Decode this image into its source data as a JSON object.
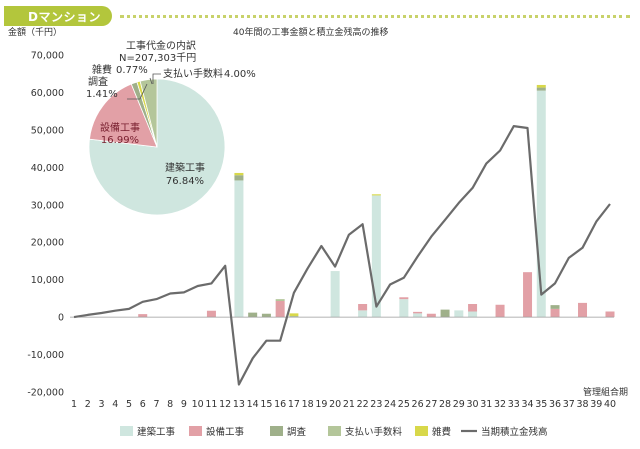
{
  "section_title": "Dマンション",
  "chart_data": {
    "type": "bar",
    "title": "40年間の工事金額と積立金残高の推移",
    "ylabel": "金額（千円）",
    "xlabel": "管理組合期",
    "ylim": [
      -20000,
      70000
    ],
    "yticks": [
      70000,
      60000,
      50000,
      40000,
      30000,
      20000,
      10000,
      0,
      -10000,
      -20000
    ],
    "ytick_labels": [
      "70,000",
      "60,000",
      "50,000",
      "40,000",
      "30,000",
      "20,000",
      "10,000",
      "0",
      "-10,000",
      "-20,000"
    ],
    "categories": [
      "1",
      "2",
      "3",
      "4",
      "5",
      "6",
      "7",
      "8",
      "9",
      "10",
      "11",
      "12",
      "13",
      "14",
      "15",
      "16",
      "17",
      "18",
      "19",
      "20",
      "21",
      "22",
      "23",
      "24",
      "25",
      "26",
      "27",
      "28",
      "29",
      "30",
      "31",
      "32",
      "33",
      "34",
      "35",
      "36",
      "37",
      "38",
      "39",
      "40"
    ],
    "series": [
      {
        "name": "建築工事",
        "color": "#cfe6df",
        "values": [
          0,
          0,
          0,
          0,
          0,
          0,
          0,
          0,
          0,
          0,
          0,
          0,
          36500,
          0,
          0,
          0,
          0,
          0,
          0,
          12300,
          0,
          1800,
          32500,
          0,
          4800,
          1000,
          0,
          0,
          1800,
          1500,
          0,
          0,
          0,
          0,
          60500,
          0,
          0,
          0,
          0,
          0
        ]
      },
      {
        "name": "設備工事",
        "color": "#e2a0a6",
        "values": [
          0,
          0,
          0,
          0,
          0,
          800,
          0,
          0,
          0,
          0,
          1700,
          0,
          0,
          0,
          0,
          4300,
          0,
          0,
          0,
          0,
          0,
          1700,
          0,
          0,
          500,
          400,
          900,
          0,
          0,
          2000,
          0,
          3300,
          0,
          12000,
          0,
          2200,
          0,
          3800,
          0,
          1500
        ]
      },
      {
        "name": "調査",
        "color": "#9fb08a",
        "values": [
          0,
          0,
          0,
          0,
          0,
          0,
          0,
          0,
          0,
          0,
          0,
          0,
          1400,
          1200,
          900,
          0,
          0,
          0,
          0,
          0,
          0,
          0,
          0,
          0,
          0,
          0,
          0,
          2000,
          0,
          0,
          0,
          0,
          0,
          0,
          800,
          1000,
          0,
          0,
          0,
          0
        ]
      },
      {
        "name": "支払い手数料",
        "color": "#b4c69a",
        "values": [
          0,
          0,
          0,
          0,
          0,
          0,
          0,
          0,
          0,
          0,
          0,
          0,
          0,
          0,
          0,
          500,
          300,
          0,
          0,
          0,
          0,
          0,
          0,
          0,
          0,
          0,
          0,
          0,
          0,
          0,
          0,
          0,
          0,
          0,
          0,
          0,
          0,
          0,
          0,
          0
        ]
      },
      {
        "name": "雑費",
        "color": "#d8d84a",
        "values": [
          0,
          0,
          0,
          0,
          0,
          0,
          0,
          0,
          0,
          0,
          0,
          0,
          600,
          0,
          0,
          0,
          700,
          0,
          0,
          0,
          0,
          0,
          300,
          0,
          0,
          0,
          0,
          0,
          0,
          0,
          0,
          0,
          0,
          0,
          700,
          0,
          0,
          0,
          0,
          0
        ]
      }
    ],
    "line": {
      "name": "当期積立金残高",
      "color": "#6b6b6b",
      "values": [
        0,
        600,
        1100,
        1700,
        2200,
        4100,
        4800,
        6300,
        6600,
        8300,
        9000,
        13700,
        -18000,
        -11000,
        -6300,
        -6300,
        6500,
        13000,
        19000,
        13500,
        22000,
        24800,
        2800,
        8700,
        10500,
        16200,
        21500,
        26000,
        30500,
        34500,
        41000,
        44500,
        51000,
        50500,
        6000,
        9000,
        15800,
        18500,
        25500,
        30200
      ]
    },
    "pie": {
      "title": "工事代金の内訳",
      "total": "N=207,303千円",
      "slices": [
        {
          "label": "建築工事",
          "value_text": "76.84%",
          "value": 76.84,
          "color": "#cfe6df"
        },
        {
          "label": "設備工事",
          "value_text": "16.99%",
          "value": 16.99,
          "color": "#e2a0a6"
        },
        {
          "label": "調査",
          "value_text": "1.41%",
          "value": 1.41,
          "color": "#9fb08a"
        },
        {
          "label": "雑費",
          "value_text": "0.77%",
          "value": 0.77,
          "color": "#d8d84a"
        },
        {
          "label": "支払い手数料",
          "value_text": "4.00%",
          "value": 4.0,
          "color": "#b4c69a"
        }
      ]
    },
    "legend": [
      "建築工事",
      "設備工事",
      "調査",
      "支払い手数料",
      "雑費",
      "当期積立金残高"
    ],
    "legend_position": "bottom",
    "grid": false
  }
}
